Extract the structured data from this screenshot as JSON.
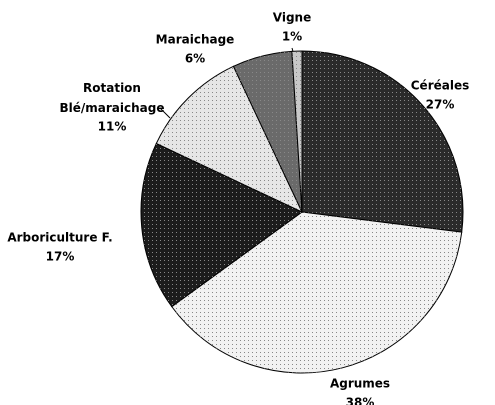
{
  "chart_data": {
    "type": "pie",
    "categories": [
      "Céréales",
      "Agrumes",
      "Arboriculture F.",
      "Rotation Blé/maraichage",
      "Maraichage",
      "Vigne"
    ],
    "values": [
      27,
      38,
      17,
      11,
      6,
      1
    ],
    "value_labels": [
      "27%",
      "38%",
      "17%",
      "11%",
      "6%",
      "1%"
    ],
    "colors": [
      "#2a2a2a",
      "#f2f2f2",
      "#1c1c1c",
      "#e6e6e6",
      "#6a6a6a",
      "#c8c8c8"
    ]
  }
}
